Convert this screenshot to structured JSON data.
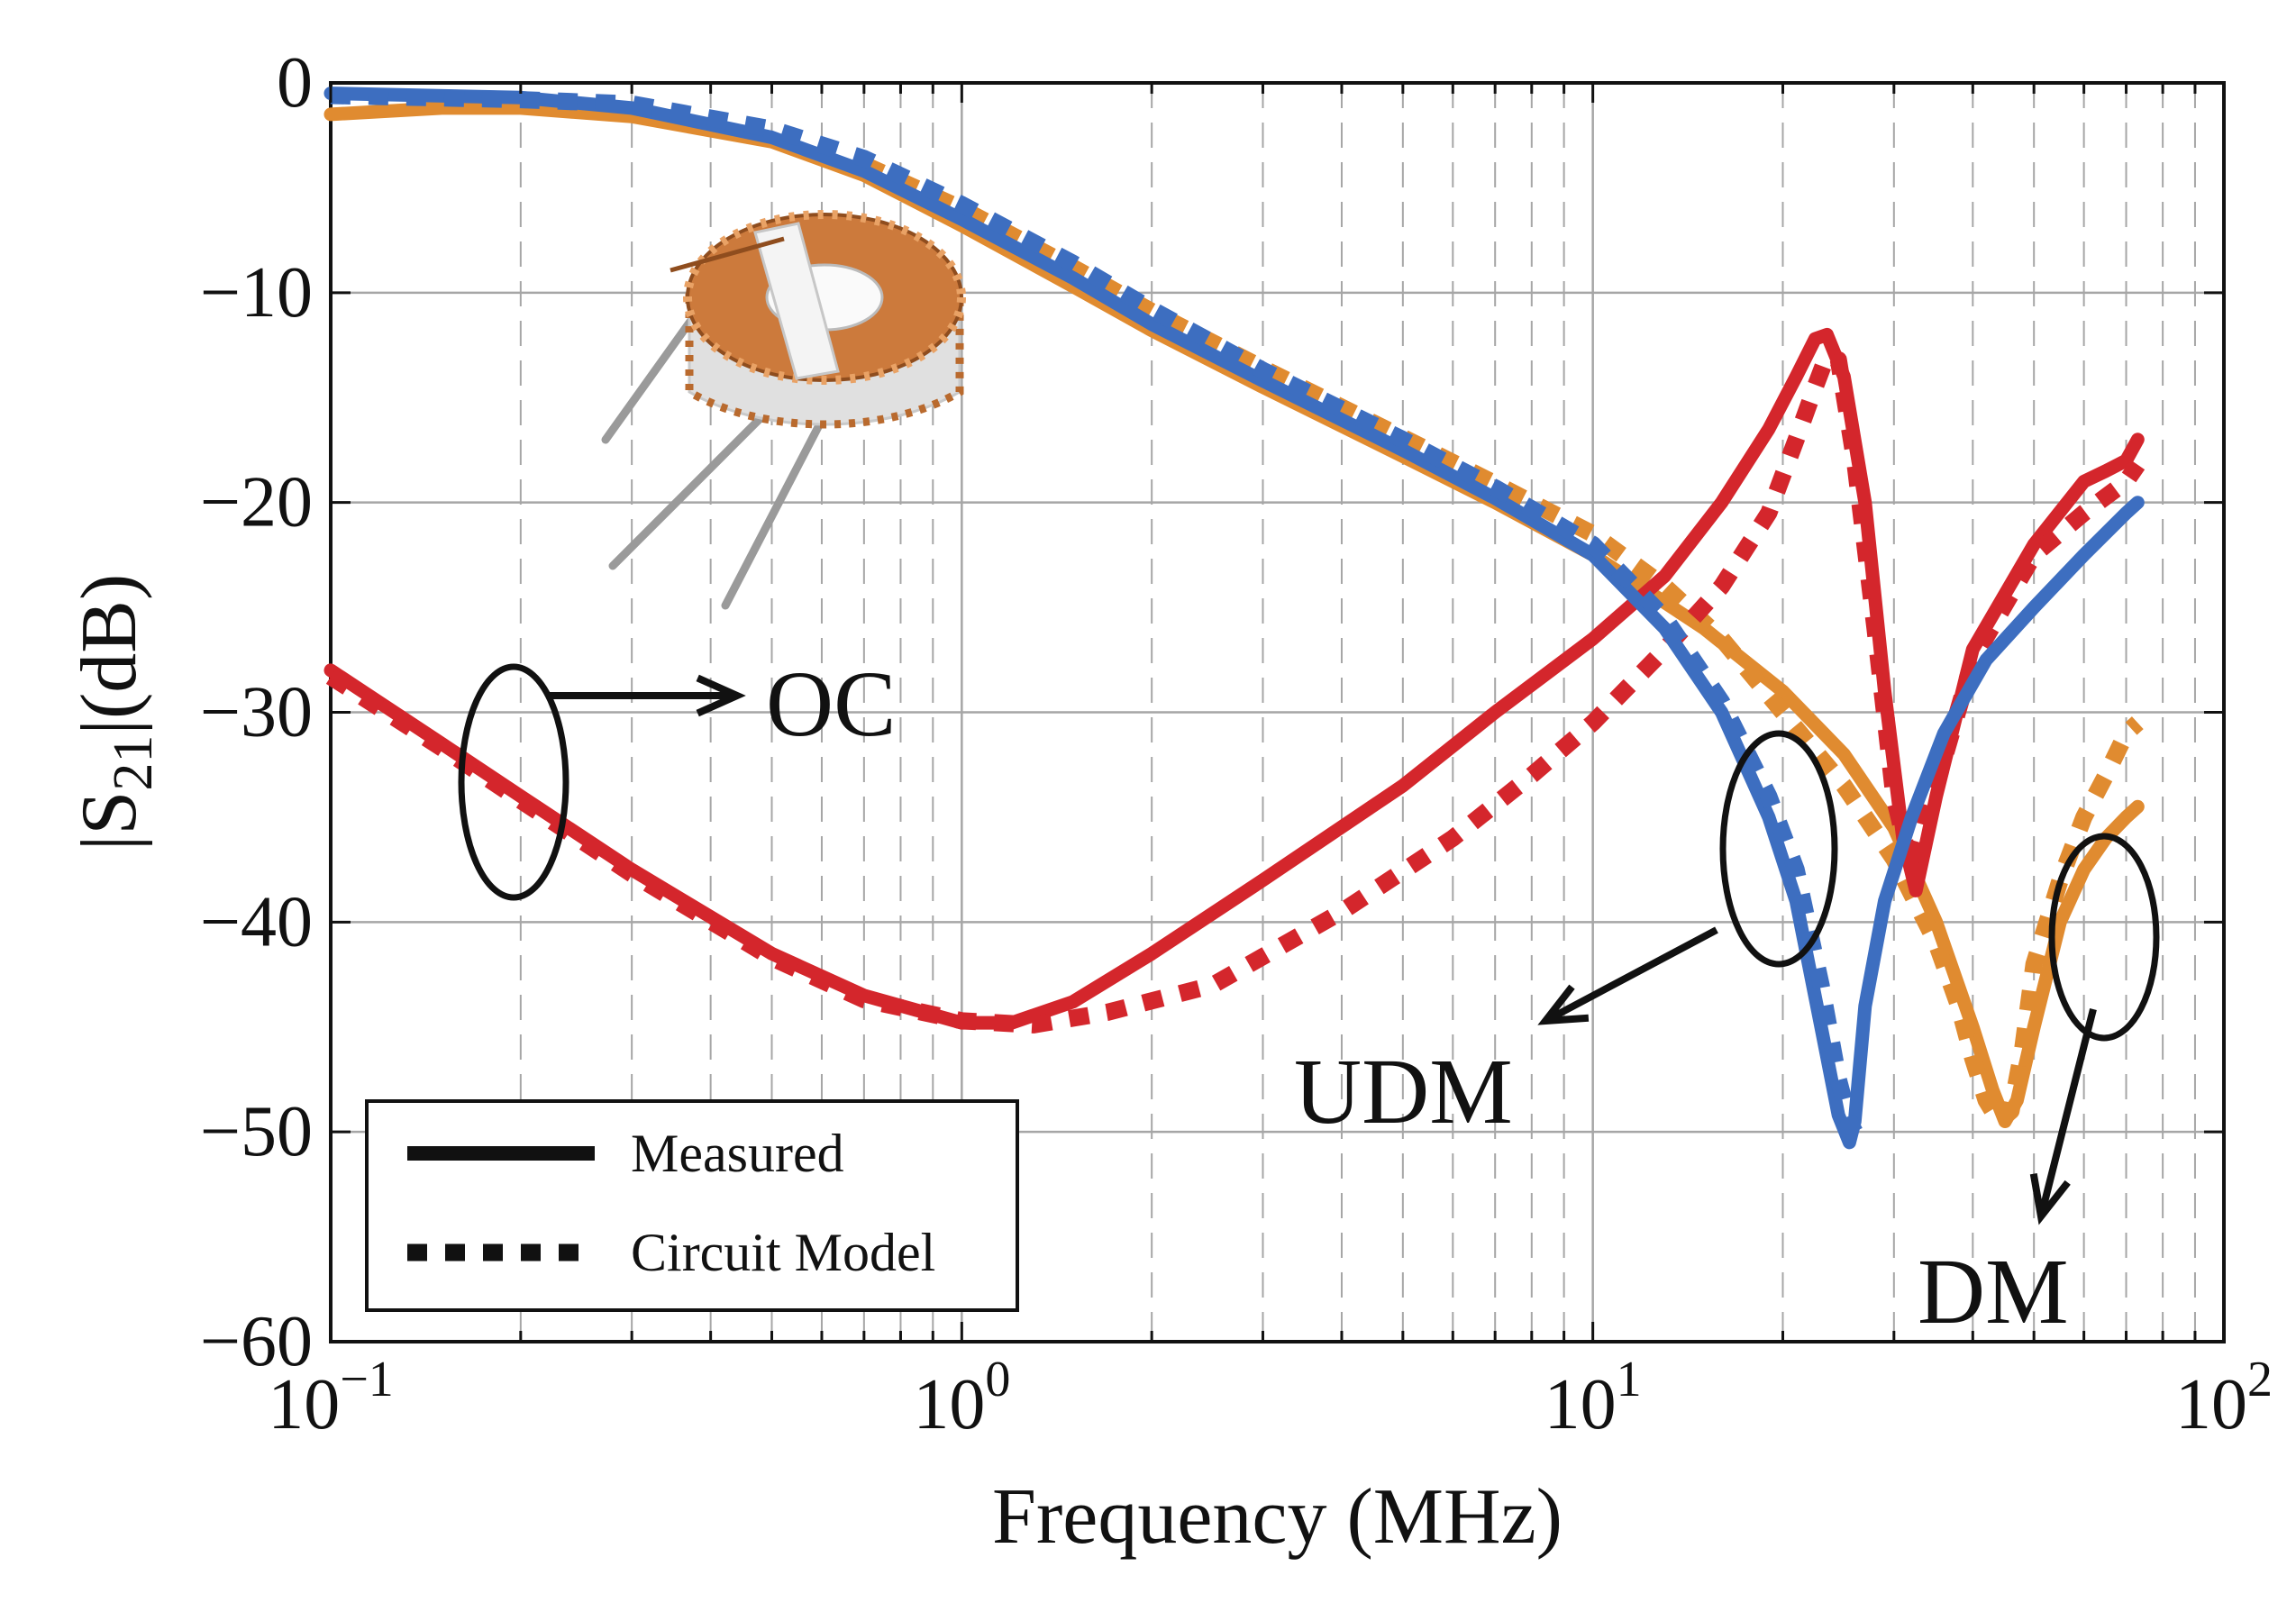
{
  "chart_data": {
    "type": "line",
    "x_scale": "log",
    "xlabel": "Frequency (MHz)",
    "ylabel": "|S21|(dB)",
    "ylabel_main": "|S",
    "ylabel_sub": "21",
    "ylabel_tail": "|(dB)",
    "xlim": [
      0.1,
      100
    ],
    "ylim": [
      -60,
      0
    ],
    "x_ticks": [
      {
        "value": 0.1,
        "base": "10",
        "exp": "−1"
      },
      {
        "value": 1,
        "base": "10",
        "exp": "0"
      },
      {
        "value": 10,
        "base": "10",
        "exp": "1"
      },
      {
        "value": 100,
        "base": "10",
        "exp": "2"
      }
    ],
    "y_ticks": [
      {
        "value": 0,
        "label": "0"
      },
      {
        "value": -10,
        "label": "−10"
      },
      {
        "value": -20,
        "label": "−20"
      },
      {
        "value": -30,
        "label": "−30"
      },
      {
        "value": -40,
        "label": "−40"
      },
      {
        "value": -50,
        "label": "−50"
      },
      {
        "value": -60,
        "label": "−60"
      }
    ],
    "grid": true,
    "legend": {
      "position": "bottom-left",
      "entries": [
        {
          "label": "Measured",
          "style": "solid"
        },
        {
          "label": "Circuit Model",
          "style": "dotted"
        }
      ]
    },
    "annotations": [
      {
        "label": "OC",
        "target": "red curve near 0.2 MHz"
      },
      {
        "label": "UDM",
        "target": "blue curve near 25 MHz"
      },
      {
        "label": "DM",
        "target": "orange curve near 70 MHz"
      }
    ],
    "series": [
      {
        "name": "OC Measured",
        "color": "#d4262c",
        "style": "solid",
        "x": [
          0.1,
          0.15,
          0.2,
          0.3,
          0.5,
          0.7,
          1.0,
          1.2,
          1.5,
          2,
          3,
          5,
          7,
          10,
          13,
          16,
          19,
          21,
          22.5,
          23.5,
          25,
          27,
          29,
          31,
          32.5,
          35,
          40,
          50,
          60,
          65,
          70,
          73
        ],
        "y": [
          -28,
          -31.5,
          -34,
          -37.5,
          -41.5,
          -43.5,
          -44.8,
          -44.8,
          -43.8,
          -41.5,
          -38,
          -33.5,
          -30,
          -26.5,
          -23.5,
          -20,
          -16.5,
          -14,
          -12.2,
          -12,
          -14,
          -20,
          -29,
          -36,
          -38.5,
          -34,
          -27,
          -22,
          -19,
          -18.5,
          -18,
          -17
        ]
      },
      {
        "name": "OC Circuit Model",
        "color": "#d4262c",
        "style": "dotted",
        "x": [
          0.1,
          0.15,
          0.2,
          0.3,
          0.5,
          0.7,
          1.0,
          1.3,
          1.7,
          2.5,
          4,
          6,
          8,
          10,
          13,
          16,
          19,
          21,
          22.5,
          23.5,
          24.5,
          26,
          28,
          30,
          32,
          35,
          40,
          50,
          60,
          70,
          73
        ],
        "y": [
          -28.3,
          -31.7,
          -34.2,
          -37.7,
          -41.7,
          -43.7,
          -44.7,
          -44.9,
          -44.3,
          -43,
          -39.5,
          -36,
          -33,
          -30.5,
          -27,
          -24,
          -20.5,
          -17,
          -14.5,
          -13,
          -13.2,
          -18,
          -26,
          -34,
          -37.5,
          -33.5,
          -27.5,
          -22.5,
          -20.5,
          -19,
          -18.2
        ]
      },
      {
        "name": "UDM Measured",
        "color": "#3d6ec0",
        "style": "solid",
        "x": [
          0.1,
          0.2,
          0.3,
          0.5,
          0.7,
          1,
          1.5,
          2,
          3,
          5,
          7,
          10,
          13,
          16,
          19,
          21,
          23,
          24.5,
          25.5,
          26,
          27,
          29,
          32,
          36,
          42,
          50,
          60,
          70,
          73
        ],
        "y": [
          -0.5,
          -0.7,
          -1.2,
          -2.6,
          -4.2,
          -6.5,
          -9.3,
          -11.5,
          -14.2,
          -17.5,
          -19.8,
          -22.5,
          -26,
          -30,
          -35,
          -39,
          -45,
          -49.2,
          -50.5,
          -49.5,
          -44,
          -39,
          -35,
          -31,
          -27.5,
          -25,
          -22.5,
          -20.5,
          -20
        ]
      },
      {
        "name": "UDM Circuit Model",
        "color": "#3d6ec0",
        "style": "dotted",
        "x": [
          0.1,
          0.2,
          0.3,
          0.5,
          0.7,
          1,
          1.5,
          2,
          3,
          5,
          7,
          10,
          13,
          16,
          19,
          21,
          23,
          24.5,
          25.5,
          26
        ],
        "y": [
          -0.6,
          -0.8,
          -1,
          -2.2,
          -3.6,
          -5.8,
          -8.6,
          -10.8,
          -13.7,
          -17,
          -19.3,
          -22,
          -25.5,
          -29.5,
          -34,
          -37.5,
          -43,
          -47.5,
          -49.5,
          -50
        ]
      },
      {
        "name": "DM Measured",
        "color": "#e08b30",
        "style": "solid",
        "x": [
          0.1,
          0.15,
          0.2,
          0.3,
          0.5,
          0.7,
          1,
          1.5,
          2,
          3,
          5,
          7,
          10,
          15,
          20,
          25,
          30,
          35,
          40,
          43,
          45,
          47,
          50,
          55,
          60,
          65,
          70,
          73
        ],
        "y": [
          -1.5,
          -1.2,
          -1.2,
          -1.6,
          -2.8,
          -4.4,
          -6.8,
          -9.7,
          -11.8,
          -14.5,
          -17.8,
          -20,
          -22.5,
          -26,
          -29,
          -32,
          -35.5,
          -40,
          -45,
          -48,
          -49.5,
          -48.5,
          -45,
          -40,
          -37.5,
          -36,
          -35,
          -34.5
        ]
      },
      {
        "name": "DM Circuit Model",
        "color": "#e08b30",
        "style": "dotted",
        "x": [
          0.7,
          1,
          1.5,
          2,
          3,
          5,
          7,
          10,
          13,
          16,
          20,
          25,
          30,
          35,
          38,
          40,
          42,
          44,
          46,
          48,
          50,
          55,
          60,
          65,
          70,
          73
        ],
        "y": [
          -3.9,
          -6,
          -8.8,
          -10.9,
          -13.6,
          -16.9,
          -19.1,
          -21.5,
          -24,
          -26.5,
          -30,
          -33.5,
          -37,
          -41,
          -44,
          -46.5,
          -48.5,
          -49.5,
          -49,
          -46,
          -42,
          -38,
          -35,
          -33,
          -31,
          -30.5
        ]
      }
    ]
  }
}
